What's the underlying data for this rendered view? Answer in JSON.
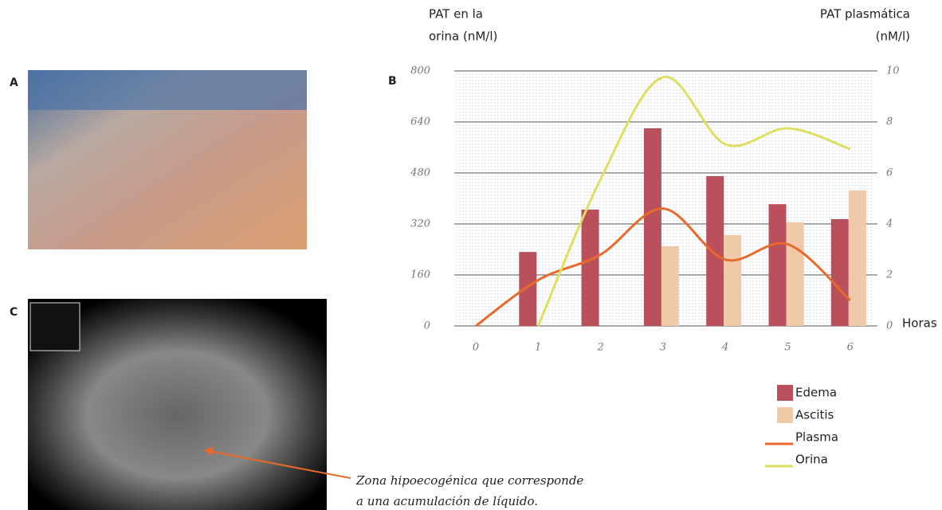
{
  "panels": {
    "a": "A",
    "b": "B",
    "c": "C"
  },
  "annotation": [
    "Zona hipoecogénica que corresponde",
    "a una acumulación de líquido."
  ],
  "chart_data": {
    "type": "bar",
    "ylabel": [
      "PAT en la",
      "orina (nM/l)"
    ],
    "y2label": [
      "PAT plasmática",
      "(nM/l)"
    ],
    "xlabel": "Horas",
    "categories": [
      "0",
      "1",
      "2",
      "3",
      "4",
      "5",
      "6"
    ],
    "ylim": [
      0,
      800
    ],
    "yticks": [
      0,
      160,
      320,
      480,
      640,
      800
    ],
    "y2lim": [
      0,
      10
    ],
    "y2ticks": [
      0,
      2,
      4,
      6,
      8,
      10
    ],
    "grid": true,
    "series": [
      {
        "name": "Edema",
        "type": "bar",
        "color": "#b9505c",
        "values": [
          null,
          232,
          365,
          620,
          470,
          382,
          335
        ]
      },
      {
        "name": "Ascitis",
        "type": "bar",
        "color": "#f0c9a8",
        "values": [
          null,
          null,
          null,
          250,
          285,
          325,
          425
        ]
      },
      {
        "name": "Plasma",
        "type": "line",
        "axis": "y2",
        "color": "#e8692a",
        "values": [
          0,
          1.8,
          2.8,
          4.6,
          2.6,
          3.2,
          1.0
        ]
      },
      {
        "name": "Orina",
        "type": "line",
        "color": "#dede60",
        "values": [
          null,
          0,
          460,
          780,
          570,
          620,
          555
        ]
      }
    ]
  }
}
